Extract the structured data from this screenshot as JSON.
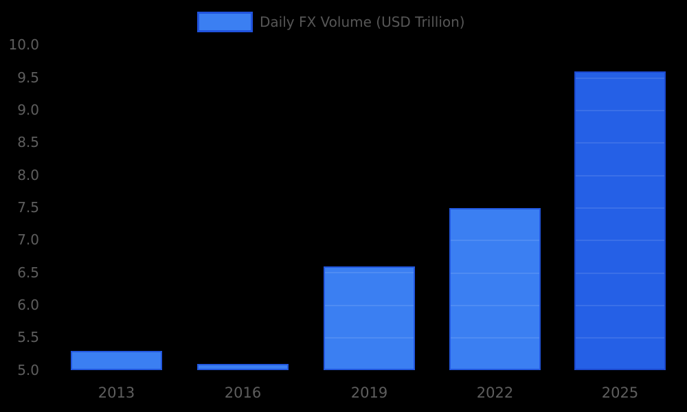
{
  "chart_data": {
    "type": "bar",
    "title": "",
    "legend": {
      "label": "Daily FX Volume (USD Trillion)",
      "position": "top-center"
    },
    "categories": [
      "2013",
      "2016",
      "2019",
      "2022",
      "2025"
    ],
    "values": [
      5.3,
      5.1,
      6.6,
      7.5,
      9.6
    ],
    "xlabel": "",
    "ylabel": "",
    "ylim": [
      5.0,
      10.0
    ],
    "ytick_step": 0.5,
    "ytick_labels": [
      "5.0",
      "5.5",
      "6.0",
      "6.5",
      "7.0",
      "7.5",
      "8.0",
      "8.5",
      "9.0",
      "9.5",
      "10.0"
    ],
    "grid": false,
    "bar_styles": [
      {
        "fill": "#3b7ff2",
        "border": "#2257df"
      },
      {
        "fill": "#3b7ff2",
        "border": "#2257df"
      },
      {
        "fill": "#3b7ff2",
        "border": "#2257df"
      },
      {
        "fill": "#3b7ff2",
        "border": "#2257df"
      },
      {
        "fill": "#2560e6",
        "border": "#1c49cf"
      }
    ],
    "gridline_stripe_color": "rgba(255,255,255,0.10)"
  },
  "colors": {
    "background": "#000000",
    "tick_text": "#5e5e5e",
    "legend_text": "#565656",
    "legend_swatch_fill": "#3b7ff2",
    "legend_swatch_border": "#2053dd"
  }
}
